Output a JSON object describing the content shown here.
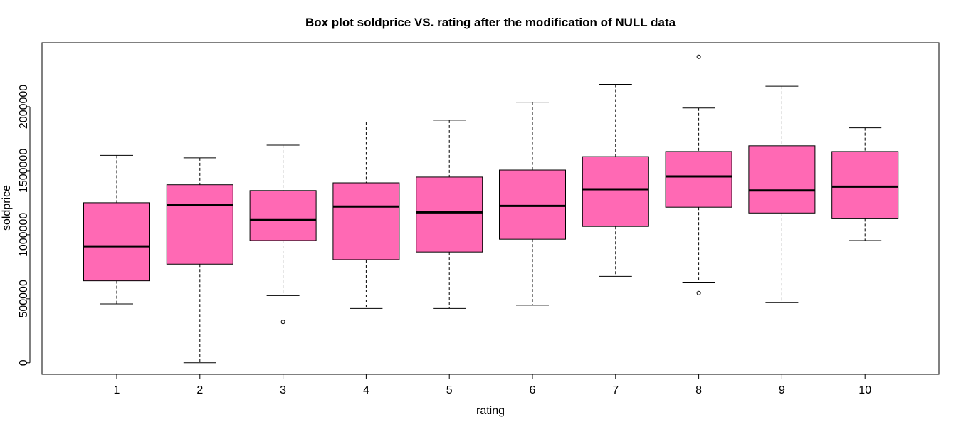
{
  "chart_data": {
    "type": "boxplot",
    "title": "Box plot soldprice VS. rating after the modification of NULL data",
    "xlabel": "rating",
    "ylabel": "soldprice",
    "categories": [
      "1",
      "2",
      "3",
      "4",
      "5",
      "6",
      "7",
      "8",
      "9",
      "10"
    ],
    "y_ticks": [
      0,
      500000,
      1000000,
      1500000,
      2000000
    ],
    "y_tick_labels": [
      "0",
      "500000",
      "1000000",
      "1500000",
      "2000000"
    ],
    "ylim": [
      -90000,
      2500000
    ],
    "box_color": "#FF69B4",
    "boxes": [
      {
        "min": 460000,
        "q1": 640000,
        "median": 910000,
        "q3": 1250000,
        "max": 1620000,
        "outliers": []
      },
      {
        "min": 0,
        "q1": 770000,
        "median": 1230000,
        "q3": 1390000,
        "max": 1600000,
        "outliers": []
      },
      {
        "min": 525000,
        "q1": 955000,
        "median": 1115000,
        "q3": 1345000,
        "max": 1700000,
        "outliers": [
          320000
        ]
      },
      {
        "min": 425000,
        "q1": 805000,
        "median": 1220000,
        "q3": 1405000,
        "max": 1880000,
        "outliers": []
      },
      {
        "min": 425000,
        "q1": 865000,
        "median": 1175000,
        "q3": 1450000,
        "max": 1895000,
        "outliers": []
      },
      {
        "min": 450000,
        "q1": 965000,
        "median": 1225000,
        "q3": 1505000,
        "max": 2035000,
        "outliers": []
      },
      {
        "min": 675000,
        "q1": 1065000,
        "median": 1355000,
        "q3": 1610000,
        "max": 2175000,
        "outliers": []
      },
      {
        "min": 630000,
        "q1": 1215000,
        "median": 1455000,
        "q3": 1650000,
        "max": 1990000,
        "outliers": [
          545000,
          2390000
        ]
      },
      {
        "min": 470000,
        "q1": 1170000,
        "median": 1345000,
        "q3": 1695000,
        "max": 2160000,
        "outliers": []
      },
      {
        "min": 955000,
        "q1": 1125000,
        "median": 1375000,
        "q3": 1650000,
        "max": 1835000,
        "outliers": []
      }
    ]
  }
}
